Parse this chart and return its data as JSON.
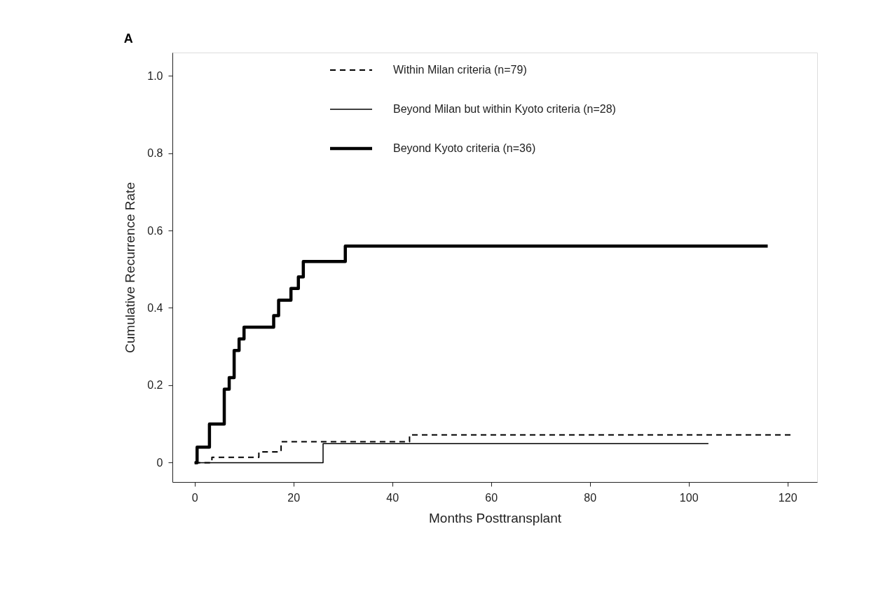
{
  "chart_data": {
    "type": "step",
    "title": "A",
    "xlabel": "Months Posttransplant",
    "ylabel": "Cumulative Recurrence Rate",
    "xlim": [
      -4.5,
      126
    ],
    "xticks": [
      0,
      20,
      40,
      60,
      80,
      100,
      120
    ],
    "ylim": [
      -0.05,
      1.06
    ],
    "yticks": [
      {
        "value": 0,
        "label": "0"
      },
      0.2,
      0.4,
      0.6,
      0.8,
      {
        "value": 1.0,
        "label": "1.0"
      }
    ],
    "grid": false,
    "legend": "top right",
    "marker": "none",
    "series": [
      {
        "name": "Within Milan criteria (n=79)",
        "color": "#000000",
        "line_style": "dashed",
        "x": [
          0,
          3.5,
          13,
          17.5,
          43.5,
          121
        ],
        "values": [
          0,
          0.014,
          0.028,
          0.054,
          0.072,
          0.072
        ]
      },
      {
        "name": "Beyond Milan but within Kyoto criteria (n=28)",
        "color": "#000000",
        "line_style": "solid",
        "x": [
          0,
          26,
          104
        ],
        "values": [
          0,
          0.049,
          0.049
        ]
      },
      {
        "name": "Beyond Kyoto criteria (n=36)",
        "color": "#000000",
        "line_style": "solid",
        "x": [
          0,
          0.5,
          3,
          6,
          7,
          8,
          9,
          10,
          16,
          17,
          19.5,
          21,
          22,
          30.5,
          116
        ],
        "values": [
          0,
          0.04,
          0.1,
          0.19,
          0.22,
          0.29,
          0.32,
          0.35,
          0.38,
          0.42,
          0.45,
          0.48,
          0.52,
          0.56,
          0.56
        ]
      }
    ]
  }
}
